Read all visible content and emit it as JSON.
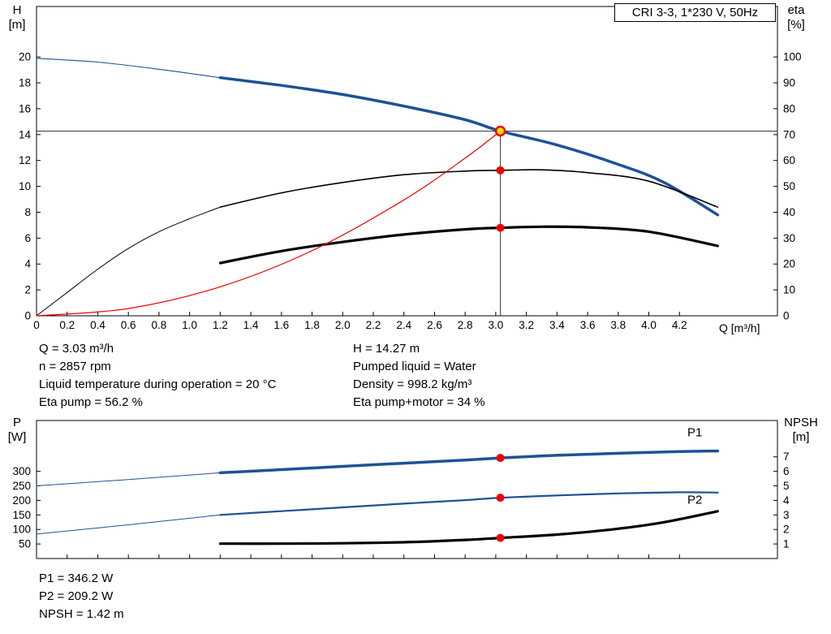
{
  "title_box": {
    "label": "CRI 3-3, 1*230 V, 50Hz"
  },
  "axis_labels": {
    "h": "H",
    "h_unit": "[m]",
    "eta": "eta",
    "eta_unit": "[%]",
    "q": "Q [m³/h]",
    "p": "P",
    "p_unit": "[W]",
    "npsh": "NPSH",
    "npsh_unit": "[m]"
  },
  "info": {
    "left": [
      "Q = 3.03 m³/h",
      "n = 2857 rpm",
      "Liquid temperature during operation = 20 °C",
      "Eta pump = 56.2 %"
    ],
    "right": [
      "H = 14.27 m",
      "Pumped liquid = Water",
      "Density = 998.2 kg/m³",
      "Eta pump+motor = 34 %"
    ]
  },
  "results": [
    "P1 = 346.2 W",
    "P2 = 209.2 W",
    "NPSH = 1.42 m"
  ],
  "colors": {
    "curve_blue": "#1d5296",
    "curve_black": "#000000",
    "curve_red": "#ee0000",
    "marker_red": "#ee0000",
    "duty_yellow": "#ffdf00",
    "crosshair_gray": "#3a3a3a"
  },
  "chart_data": [
    {
      "type": "line",
      "name": "hq-eta-chart",
      "title": "CRI 3-3, 1*230 V, 50Hz",
      "plot": {
        "l": 45,
        "t": 8,
        "r": 958,
        "b": 389
      },
      "x_axis": {
        "label": "Q [m³/h]",
        "min": 0,
        "max": 4.84,
        "show_labels": true,
        "ticks": [
          "0",
          "0.2",
          "0.4",
          "0.6",
          "0.8",
          "1.0",
          "1.2",
          "1.4",
          "1.6",
          "1.8",
          "2.0",
          "2.2",
          "2.4",
          "2.6",
          "2.8",
          "3.0",
          "3.2",
          "3.4",
          "3.6",
          "3.8",
          "4.0",
          "4.2"
        ]
      },
      "y_left": {
        "label": "H [m]",
        "min": 0,
        "max": 23.9,
        "ticks": [
          0,
          2,
          4,
          6,
          8,
          10,
          12,
          14,
          16,
          18,
          20
        ]
      },
      "y_right": {
        "label": "eta [%]",
        "min": 0,
        "max": 119.5,
        "ticks": [
          0,
          10,
          20,
          30,
          40,
          50,
          60,
          70,
          80,
          90,
          100
        ]
      },
      "operating_point": {
        "Q": 3.03,
        "H": 14.27,
        "eta_pump": 56.2,
        "eta_pump_motor": 34
      },
      "crosshair": {
        "q": 3.03,
        "h": 14.27
      },
      "series": [
        {
          "name": "qh-curve-lowflow",
          "axis": "left",
          "color": "#1d5296",
          "width": 1.1,
          "points": [
            [
              0,
              19.9
            ],
            [
              0.4,
              19.6
            ],
            [
              0.8,
              19.05
            ],
            [
              1.2,
              18.4
            ]
          ]
        },
        {
          "name": "qh-curve",
          "axis": "left",
          "color": "#1d5296",
          "width": 3.5,
          "points": [
            [
              1.2,
              18.4
            ],
            [
              1.6,
              17.8
            ],
            [
              2.0,
              17.1
            ],
            [
              2.4,
              16.2
            ],
            [
              2.8,
              15.15
            ],
            [
              3.03,
              14.27
            ],
            [
              3.4,
              13.2
            ],
            [
              3.8,
              11.7
            ],
            [
              4.1,
              10.3
            ],
            [
              4.45,
              7.8
            ]
          ]
        },
        {
          "name": "eta-pump-curve-lowflow",
          "axis": "right",
          "color": "#000000",
          "width": 1,
          "points": [
            [
              0,
              0
            ],
            [
              0.2,
              9
            ],
            [
              0.4,
              18
            ],
            [
              0.6,
              26
            ],
            [
              0.8,
              32.5
            ],
            [
              1.0,
              37.5
            ],
            [
              1.2,
              42
            ]
          ]
        },
        {
          "name": "eta-pump-curve",
          "axis": "right",
          "color": "#000000",
          "width": 1.6,
          "points": [
            [
              1.2,
              42
            ],
            [
              1.6,
              47.5
            ],
            [
              2.0,
              51.5
            ],
            [
              2.4,
              54.5
            ],
            [
              2.8,
              55.9
            ],
            [
              3.03,
              56.2
            ],
            [
              3.3,
              56.4
            ],
            [
              3.6,
              55.3
            ],
            [
              4.0,
              52
            ],
            [
              4.45,
              42
            ]
          ]
        },
        {
          "name": "eta-pump-motor-curve",
          "axis": "right",
          "color": "#000000",
          "width": 3.2,
          "points": [
            [
              1.2,
              20.4
            ],
            [
              1.6,
              25
            ],
            [
              2.0,
              28.5
            ],
            [
              2.4,
              31.4
            ],
            [
              2.8,
              33.4
            ],
            [
              3.03,
              34
            ],
            [
              3.3,
              34.4
            ],
            [
              3.6,
              34.2
            ],
            [
              4.0,
              32.5
            ],
            [
              4.45,
              27
            ]
          ]
        },
        {
          "name": "system-curve",
          "axis": "left",
          "color": "#ee0000",
          "width": 1.2,
          "points": [
            [
              0,
              0
            ],
            [
              0.6,
              0.56
            ],
            [
              1.2,
              2.24
            ],
            [
              1.8,
              5.03
            ],
            [
              2.4,
              8.95
            ],
            [
              2.8,
              12.18
            ],
            [
              3.03,
              14.27
            ]
          ]
        }
      ],
      "markers": [
        {
          "name": "eta-pump-point",
          "x": 3.03,
          "y": 56.2,
          "axis": "right",
          "r": 5,
          "fill": "#ee0000"
        },
        {
          "name": "eta-pump-motor-point",
          "x": 3.03,
          "y": 34,
          "axis": "right",
          "r": 5,
          "fill": "#ee0000"
        },
        {
          "name": "duty-point",
          "x": 3.03,
          "y": 14.27,
          "axis": "left",
          "r": 5.5,
          "fill": "#ffdf00",
          "stroke": "#ee0000",
          "stroke_width": 2.5,
          "interactable": true
        }
      ]
    },
    {
      "type": "line",
      "name": "power-npsh-chart",
      "plot": {
        "l": 45,
        "t": 8,
        "r": 958,
        "b": 178
      },
      "x_axis": {
        "label": "",
        "min": 0,
        "max": 4.84,
        "show_labels": false,
        "ticks": [
          "0",
          "0.2",
          "0.4",
          "0.6",
          "0.8",
          "1.0",
          "1.2",
          "1.4",
          "1.6",
          "1.8",
          "2.0",
          "2.2",
          "2.4",
          "2.6",
          "2.8",
          "3.0",
          "3.2",
          "3.4",
          "3.6",
          "3.8",
          "4.0",
          "4.2"
        ]
      },
      "y_left": {
        "label": "P [W]",
        "min": 0,
        "max": 475,
        "ticks": [
          50,
          100,
          150,
          200,
          250,
          300
        ]
      },
      "y_right": {
        "label": "NPSH [m]",
        "min": 0,
        "max": 9.5,
        "ticks": [
          1,
          2,
          3,
          4,
          5,
          6,
          7
        ]
      },
      "operating_point": {
        "Q": 3.03,
        "P1": 346.2,
        "P2": 209.2,
        "NPSH": 1.42
      },
      "series": [
        {
          "name": "p1-curve-lowflow",
          "axis": "left",
          "color": "#1d5296",
          "width": 1,
          "points": [
            [
              0,
              250
            ],
            [
              0.6,
              272
            ],
            [
              1.2,
              295
            ]
          ]
        },
        {
          "name": "p1-curve",
          "axis": "left",
          "color": "#1d5296",
          "width": 3.5,
          "points": [
            [
              1.2,
              295
            ],
            [
              1.6,
              306
            ],
            [
              2.0,
              317
            ],
            [
              2.4,
              328
            ],
            [
              2.8,
              339
            ],
            [
              3.03,
              346.2
            ],
            [
              3.4,
              355
            ],
            [
              3.8,
              362
            ],
            [
              4.2,
              368
            ],
            [
              4.45,
              370
            ]
          ]
        },
        {
          "name": "p2-curve-lowflow",
          "axis": "left",
          "color": "#1d5296",
          "width": 1,
          "points": [
            [
              0,
              84
            ],
            [
              0.6,
              116
            ],
            [
              1.2,
              150
            ]
          ]
        },
        {
          "name": "p2-curve",
          "axis": "left",
          "color": "#1d5296",
          "width": 2.2,
          "points": [
            [
              1.2,
              150
            ],
            [
              1.6,
              163
            ],
            [
              2.0,
              176
            ],
            [
              2.4,
              189
            ],
            [
              2.8,
              201
            ],
            [
              3.03,
              209.2
            ],
            [
              3.4,
              217
            ],
            [
              3.8,
              224
            ],
            [
              4.2,
              228
            ],
            [
              4.45,
              227
            ]
          ]
        },
        {
          "name": "npsh-curve",
          "axis": "right",
          "color": "#000000",
          "width": 3.2,
          "points": [
            [
              1.2,
              1.02
            ],
            [
              1.6,
              1.02
            ],
            [
              2.0,
              1.05
            ],
            [
              2.4,
              1.12
            ],
            [
              2.8,
              1.28
            ],
            [
              3.03,
              1.42
            ],
            [
              3.4,
              1.65
            ],
            [
              3.8,
              2.05
            ],
            [
              4.1,
              2.5
            ],
            [
              4.45,
              3.25
            ]
          ]
        }
      ],
      "labels": [
        {
          "name": "p1-curve-label",
          "text": "P1",
          "x": 4.3,
          "y": 420,
          "axis": "left",
          "color": "#1d5296"
        },
        {
          "name": "p2-curve-label",
          "text": "P2",
          "x": 4.3,
          "y": 188,
          "axis": "left",
          "color": "#1d5296"
        }
      ],
      "markers": [
        {
          "name": "p1-point",
          "x": 3.03,
          "y": 346.2,
          "axis": "left",
          "r": 5,
          "fill": "#ee0000"
        },
        {
          "name": "p2-point",
          "x": 3.03,
          "y": 209.2,
          "axis": "left",
          "r": 5,
          "fill": "#ee0000"
        },
        {
          "name": "npsh-point",
          "x": 3.03,
          "y": 1.42,
          "axis": "right",
          "r": 5,
          "fill": "#ee0000"
        }
      ]
    }
  ]
}
